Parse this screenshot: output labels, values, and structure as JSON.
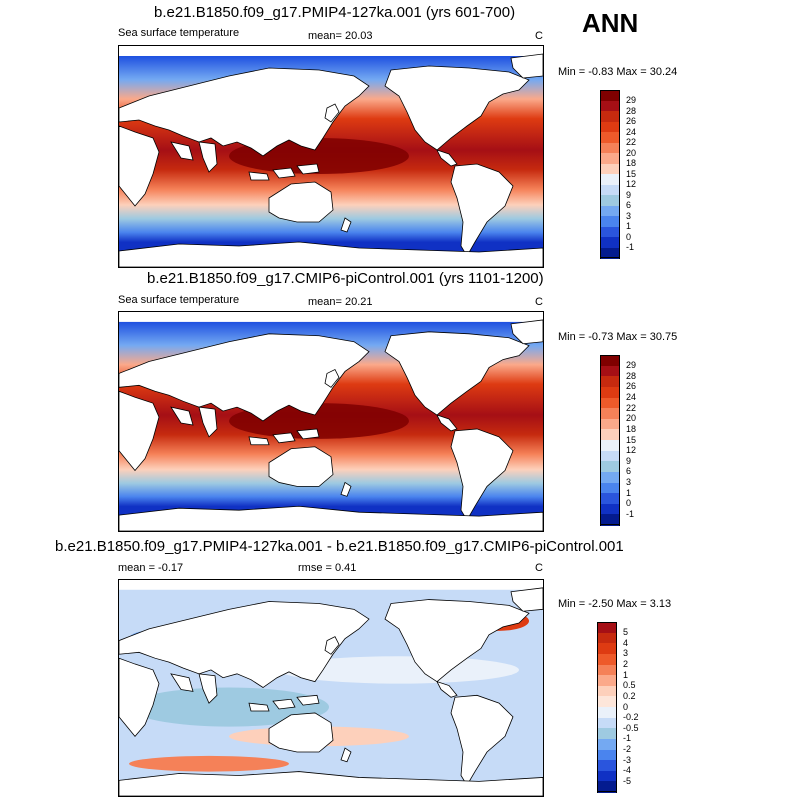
{
  "season": "ANN",
  "panels": [
    {
      "title": "b.e21.B1850.f09_g17.PMIP4-127ka.001 (yrs 601-700)",
      "left_label": "Sea surface temperature",
      "center_label": "mean=  20.03",
      "units": "C",
      "minmax": "Min =  -0.83 Max =  30.24",
      "colorbar": {
        "labels": [
          "29",
          "28",
          "26",
          "24",
          "22",
          "20",
          "18",
          "15",
          "12",
          "9",
          "6",
          "3",
          "1",
          "0",
          "-1"
        ],
        "colors": [
          "#7f0000",
          "#a50f15",
          "#c62a0f",
          "#de3b12",
          "#ee5a2a",
          "#f58158",
          "#fba98a",
          "#fdd0bb",
          "#eaf1fa",
          "#c6dbf7",
          "#9ecae1",
          "#74a9f2",
          "#4a84ee",
          "#2a55dd",
          "#1031c4",
          "#041b8f"
        ]
      }
    },
    {
      "title": "b.e21.B1850.f09_g17.CMIP6-piControl.001 (yrs 1101-1200)",
      "left_label": "Sea surface temperature",
      "center_label": "mean=  20.21",
      "units": "C",
      "minmax": "Min =  -0.73 Max =  30.75",
      "colorbar": {
        "labels": [
          "29",
          "28",
          "26",
          "24",
          "22",
          "20",
          "18",
          "15",
          "12",
          "9",
          "6",
          "3",
          "1",
          "0",
          "-1"
        ],
        "colors": [
          "#7f0000",
          "#a50f15",
          "#c62a0f",
          "#de3b12",
          "#ee5a2a",
          "#f58158",
          "#fba98a",
          "#fdd0bb",
          "#eaf1fa",
          "#c6dbf7",
          "#9ecae1",
          "#74a9f2",
          "#4a84ee",
          "#2a55dd",
          "#1031c4",
          "#041b8f"
        ]
      }
    },
    {
      "title": "b.e21.B1850.f09_g17.PMIP4-127ka.001 - b.e21.B1850.f09_g17.CMIP6-piControl.001",
      "left_label": "mean =  -0.17",
      "center_label": "rmse =   0.41",
      "units": "C",
      "minmax": "Min =  -2.50 Max =   3.13",
      "colorbar": {
        "labels": [
          "5",
          "4",
          "3",
          "2",
          "1",
          "0.5",
          "0.2",
          "0",
          "-0.2",
          "-0.5",
          "-1",
          "-2",
          "-3",
          "-4",
          "-5"
        ],
        "colors": [
          "#a50f15",
          "#c62a0f",
          "#de3b12",
          "#ee5a2a",
          "#f58158",
          "#fba98a",
          "#fdd0bb",
          "#fde6da",
          "#eaf1fa",
          "#c6dbf7",
          "#9ecae1",
          "#74a9f2",
          "#4a84ee",
          "#2a55dd",
          "#1031c4",
          "#041b8f"
        ]
      }
    }
  ]
}
